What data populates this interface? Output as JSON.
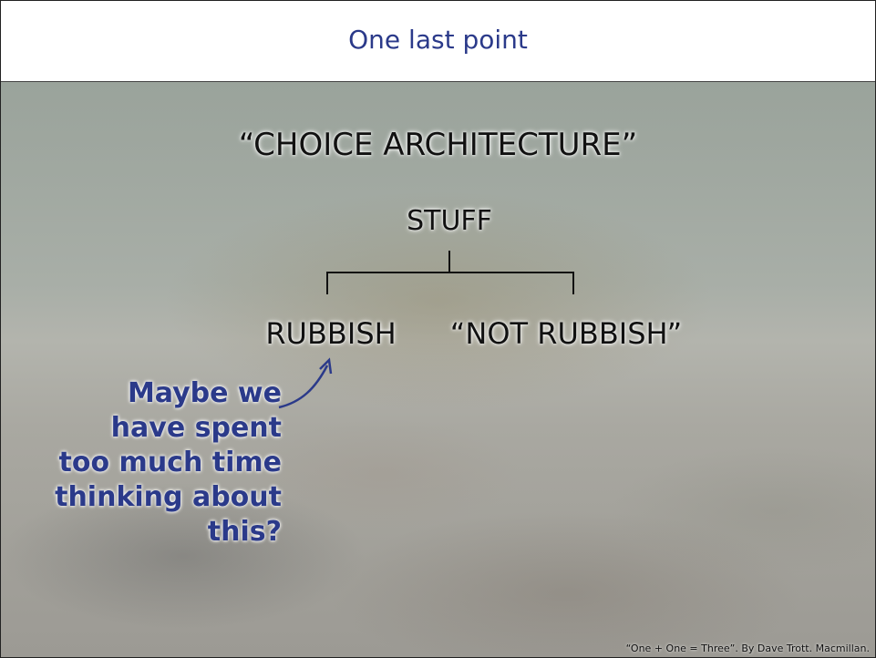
{
  "header": {
    "title": "One last point"
  },
  "body": {
    "heading": "“CHOICE ARCHITECTURE”",
    "tree": {
      "root": "STUFF",
      "children": [
        "RUBBISH",
        "“NOT RUBBISH”"
      ]
    },
    "annotation": [
      "Maybe we",
      "have spent",
      "too much time",
      "thinking about",
      "this?"
    ]
  },
  "footer": {
    "citation": "“One + One = Three”.  By Dave Trott. Macmillan."
  }
}
